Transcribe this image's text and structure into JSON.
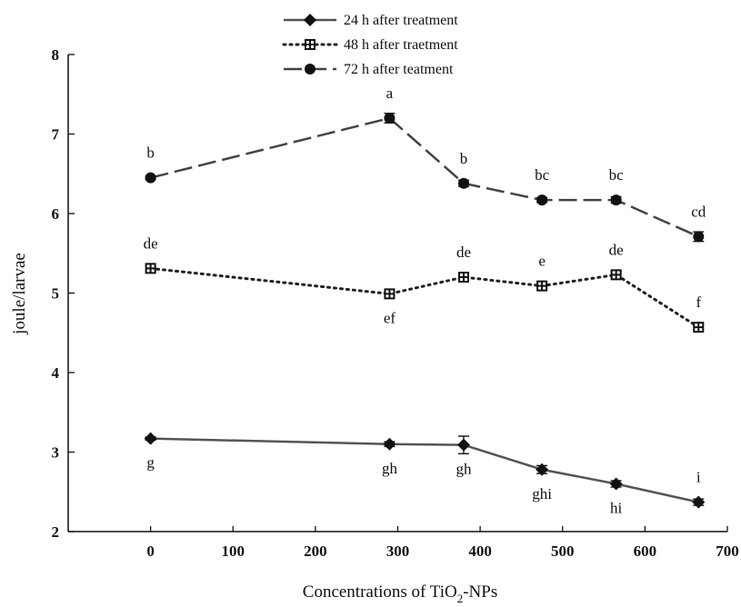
{
  "chart_data": {
    "type": "line",
    "title": "",
    "xlabel_main": "Concentrations of TiO",
    "xlabel_sub": "2",
    "xlabel_tail": "-NPs",
    "ylabel": "joule/larvae",
    "xlim": [
      -100,
      700
    ],
    "ylim": [
      2,
      8
    ],
    "xticks": [
      "0",
      "100",
      "200",
      "300",
      "400",
      "500",
      "600",
      "700"
    ],
    "yticks": [
      "2",
      "3",
      "4",
      "5",
      "6",
      "7",
      "8"
    ],
    "grid": false,
    "legend_position": "top-center",
    "x": [
      0,
      290,
      380,
      475,
      565,
      665
    ],
    "series": [
      {
        "name": "24 h after treatment",
        "line": "solid",
        "marker": "diamond",
        "color": "#555555",
        "values": [
          3.17,
          3.1,
          3.09,
          2.78,
          2.6,
          2.37
        ],
        "errors": [
          0.02,
          0.03,
          0.11,
          0.05,
          0.04,
          0.04
        ],
        "labels": [
          "g",
          "gh",
          "gh",
          "ghi",
          "hi",
          "i"
        ],
        "label_side": [
          "below",
          "below",
          "below",
          "below",
          "below",
          "above"
        ]
      },
      {
        "name": "48 h after traetment",
        "line": "dotted",
        "marker": "cross-square",
        "color": "#222222",
        "values": [
          5.31,
          4.99,
          5.2,
          5.09,
          5.23,
          4.57
        ],
        "errors": [
          0.03,
          0.03,
          0.04,
          0.03,
          0.04,
          0.04
        ],
        "labels": [
          "de",
          "ef",
          "de",
          "e",
          "de",
          "f"
        ],
        "label_side": [
          "above",
          "below",
          "above",
          "above",
          "above",
          "above"
        ]
      },
      {
        "name": "72 h after teatment",
        "line": "dashed",
        "marker": "circle",
        "color": "#444444",
        "values": [
          6.45,
          7.2,
          6.38,
          6.17,
          6.17,
          5.71
        ],
        "errors": [
          0.02,
          0.06,
          0.04,
          0.03,
          0.04,
          0.06
        ],
        "labels": [
          "b",
          "a",
          "b",
          "bc",
          "bc",
          "cd"
        ],
        "label_side": [
          "above",
          "above",
          "above",
          "above",
          "above",
          "above"
        ]
      }
    ]
  }
}
